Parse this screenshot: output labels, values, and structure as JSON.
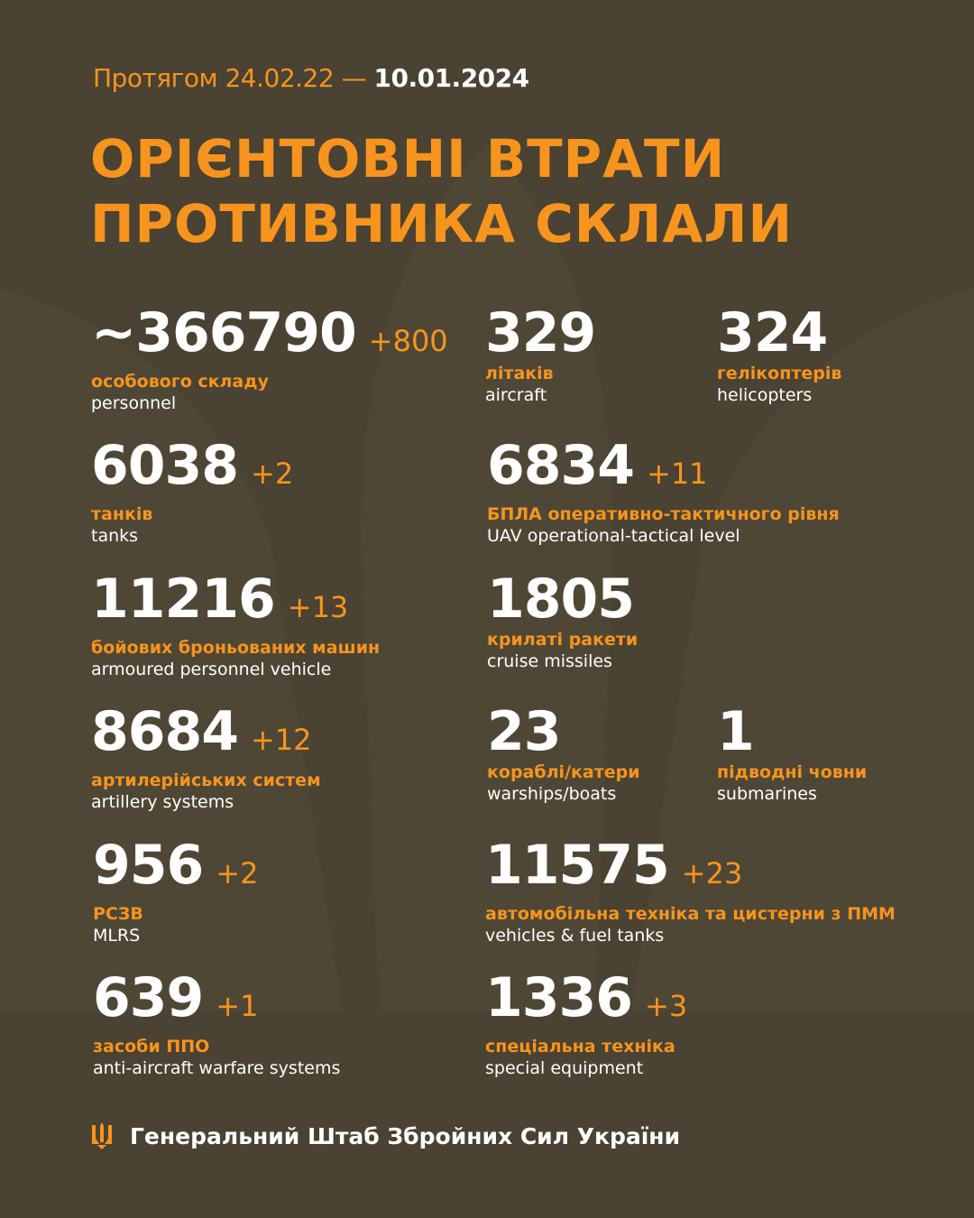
{
  "header": {
    "period_prefix": "Протягом 24.02.22 —",
    "period_date": "10.01.2024",
    "title_line1": "ОРІЄНТОВНІ ВТРАТИ",
    "title_line2": "ПРОТИВНИКА СКЛАЛИ"
  },
  "colors": {
    "background": "#4a4232",
    "accent": "#f7941d",
    "text": "#ffffff"
  },
  "stats": [
    {
      "value": "~366790",
      "delta": "+800",
      "ua": "особового складу",
      "en": "personnel"
    },
    {
      "value": "6038",
      "delta": "+2",
      "ua": "танків",
      "en": "tanks"
    },
    {
      "value": "11216",
      "delta": "+13",
      "ua": "бойових броньованих машин",
      "en": "armoured personnel vehicle"
    },
    {
      "value": "8684",
      "delta": "+12",
      "ua": "артилерійських систем",
      "en": "artillery systems"
    },
    {
      "value": "956",
      "delta": "+2",
      "ua": "РСЗВ",
      "en": "MLRS"
    },
    {
      "value": "639",
      "delta": "+1",
      "ua": "засоби ППО",
      "en": "anti-aircraft warfare systems"
    },
    {
      "value": "329",
      "delta": "",
      "ua": "літаків",
      "en": "aircraft"
    },
    {
      "value": "324",
      "delta": "",
      "ua": "гелікоптерів",
      "en": "helicopters"
    },
    {
      "value": "6834",
      "delta": "+11",
      "ua": "БПЛА оперативно-тактичного рівня",
      "en": "UAV operational-tactical level"
    },
    {
      "value": "1805",
      "delta": "",
      "ua": "крилаті ракети",
      "en": "cruise missiles"
    },
    {
      "value": "23",
      "delta": "",
      "ua": "кораблі/катери",
      "en": "warships/boats"
    },
    {
      "value": "1",
      "delta": "",
      "ua": "підводні човни",
      "en": "submarines"
    },
    {
      "value": "11575",
      "delta": "+23",
      "ua": "автомобільна техніка та цистерни з ПММ",
      "en": "vehicles & fuel tanks"
    },
    {
      "value": "1336",
      "delta": "+3",
      "ua": "спеціальна техніка",
      "en": "special equipment"
    }
  ],
  "footer": {
    "icon": "trident-icon",
    "text": "Генеральний Штаб Збройних Сил України"
  }
}
